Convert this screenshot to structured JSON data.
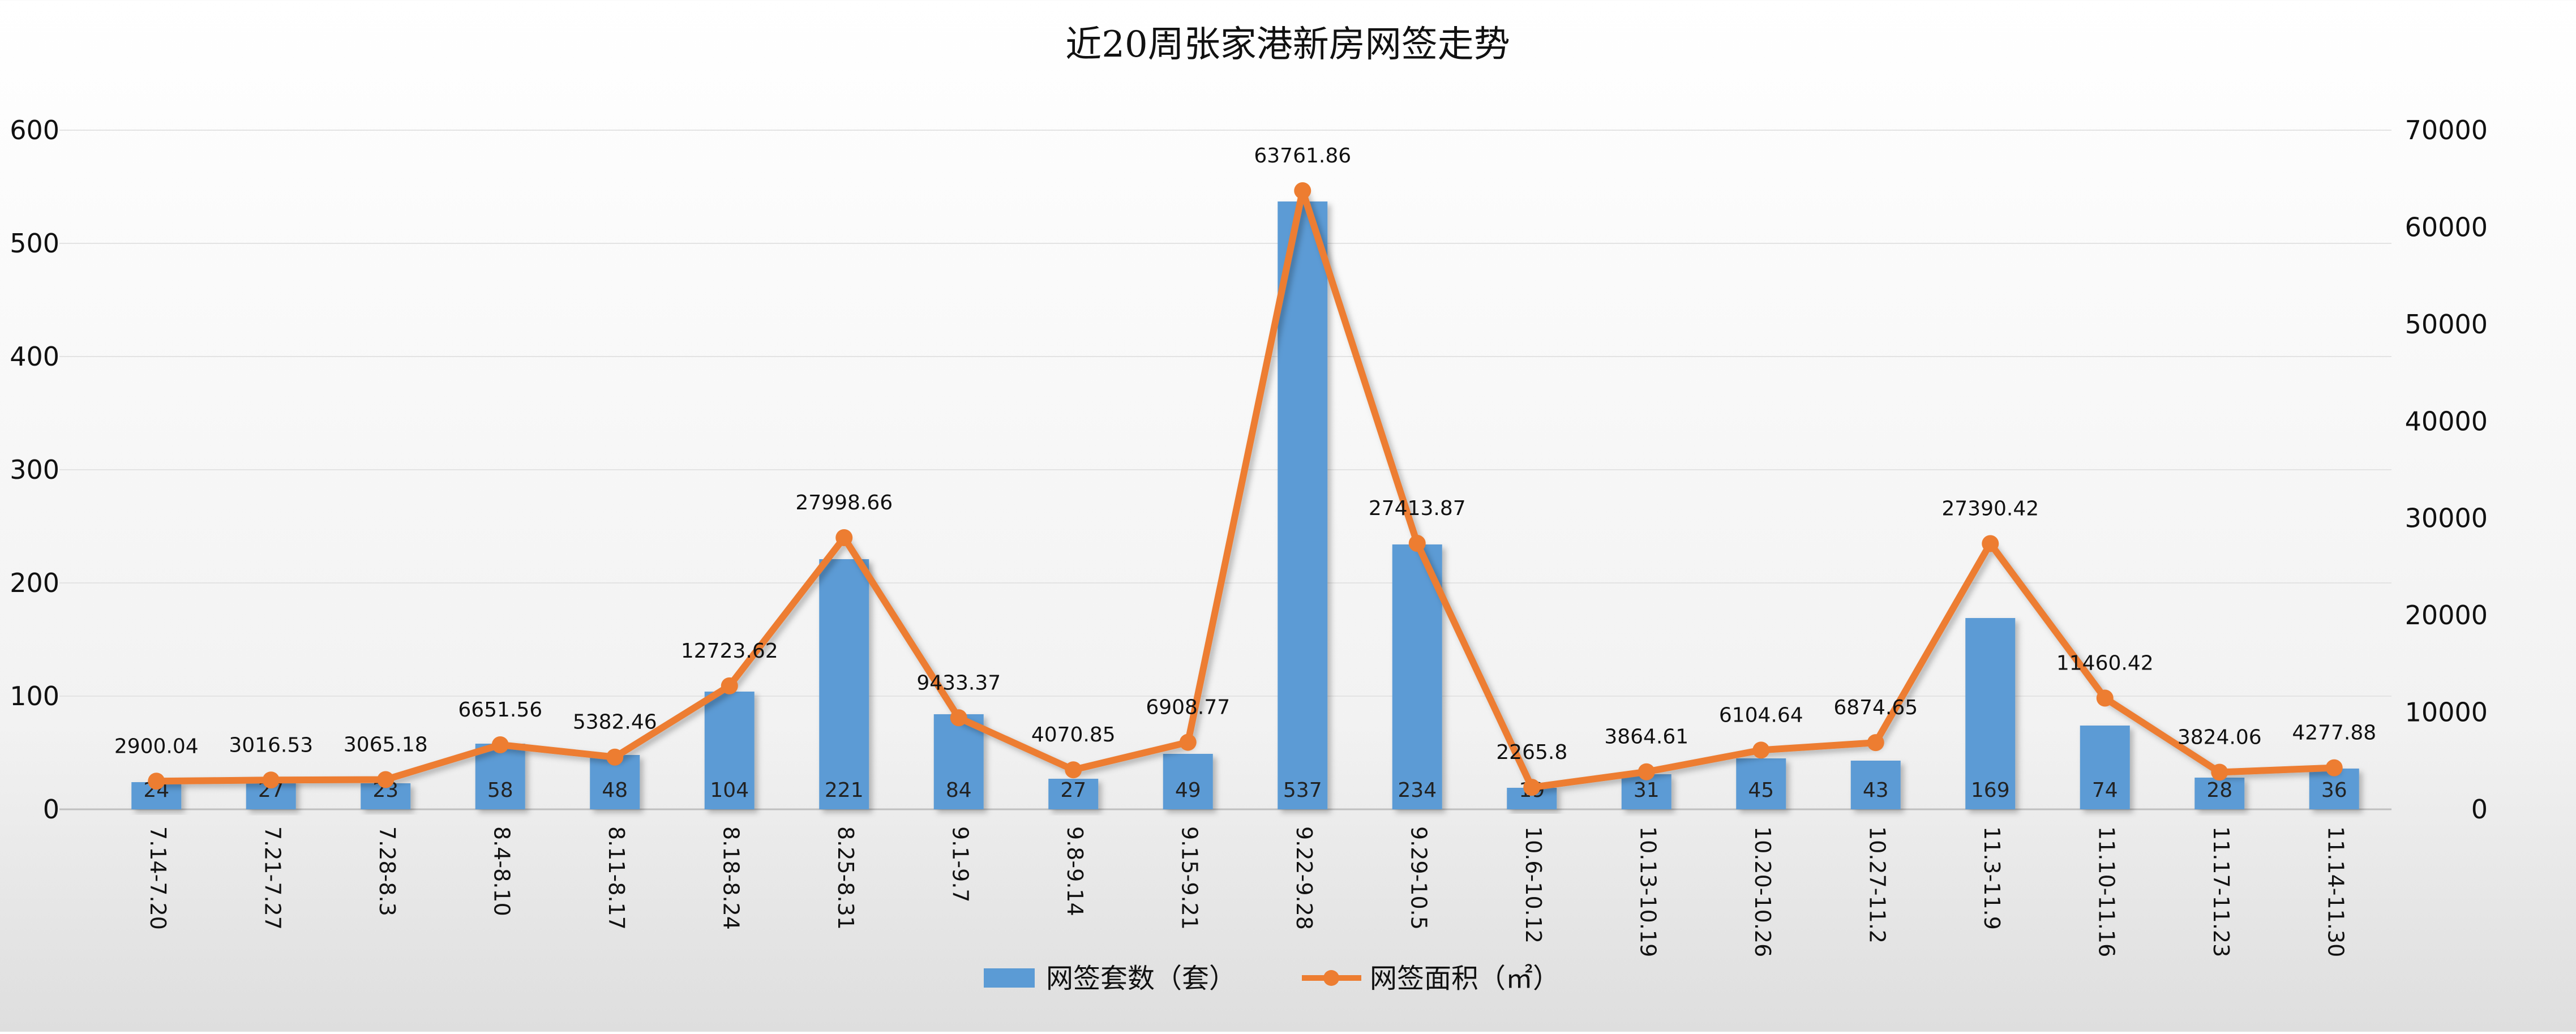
{
  "chart_data": {
    "type": "bar+line",
    "title": "近20周张家港新房网签走势",
    "categories": [
      "7.14-7.20",
      "7.21-7.27",
      "7.28-8.3",
      "8.4-8.10",
      "8.11-8.17",
      "8.18-8.24",
      "8.25-8.31",
      "9.1-9.7",
      "9.8-9.14",
      "9.15-9.21",
      "9.22-9.28",
      "9.29-10.5",
      "10.6-10.12",
      "10.13-10.19",
      "10.20-10.26",
      "10.27-11.2",
      "11.3-11.9",
      "11.10-11.16",
      "11.17-11.23",
      "11.14-11.30"
    ],
    "series": [
      {
        "name": "网签套数（套）",
        "type": "bar",
        "axis": "left",
        "color": "#5b9bd5",
        "values": [
          24,
          27,
          23,
          58,
          48,
          104,
          221,
          84,
          27,
          49,
          537,
          234,
          19,
          31,
          45,
          43,
          169,
          74,
          28,
          36
        ],
        "labels": [
          "24",
          "27",
          "23",
          "58",
          "48",
          "104",
          "221",
          "84",
          "27",
          "49",
          "537",
          "234",
          "19",
          "31",
          "45",
          "43",
          "169",
          "74",
          "28",
          "36"
        ]
      },
      {
        "name": "网签面积（㎡）",
        "type": "line",
        "axis": "right",
        "color": "#ed7d31",
        "values": [
          2900.04,
          3016.53,
          3065.18,
          6651.56,
          5382.46,
          12723.62,
          27998.66,
          9433.37,
          4070.85,
          6908.77,
          63761.86,
          27413.87,
          2265.8,
          3864.61,
          6104.64,
          6874.65,
          27390.42,
          11460.42,
          3824.06,
          4277.88
        ],
        "labels": [
          "2900.04",
          "3016.53",
          "3065.18",
          "6651.56",
          "5382.46",
          "12723.62",
          "27998.66",
          "9433.37",
          "4070.85",
          "6908.77",
          "63761.86",
          "27413.87",
          "2265.8",
          "3864.61",
          "6104.64",
          "6874.65",
          "27390.42",
          "11460.42",
          "3824.06",
          "4277.88"
        ]
      }
    ],
    "y_left": {
      "ylim": [
        0,
        600
      ],
      "ticks": [
        "0",
        "100",
        "200",
        "300",
        "400",
        "500",
        "600"
      ]
    },
    "y_right": {
      "ylim": [
        0,
        70000
      ],
      "ticks": [
        "0",
        "10000",
        "20000",
        "30000",
        "40000",
        "50000",
        "60000",
        "70000"
      ]
    },
    "grid": true,
    "legend": "bottom"
  }
}
